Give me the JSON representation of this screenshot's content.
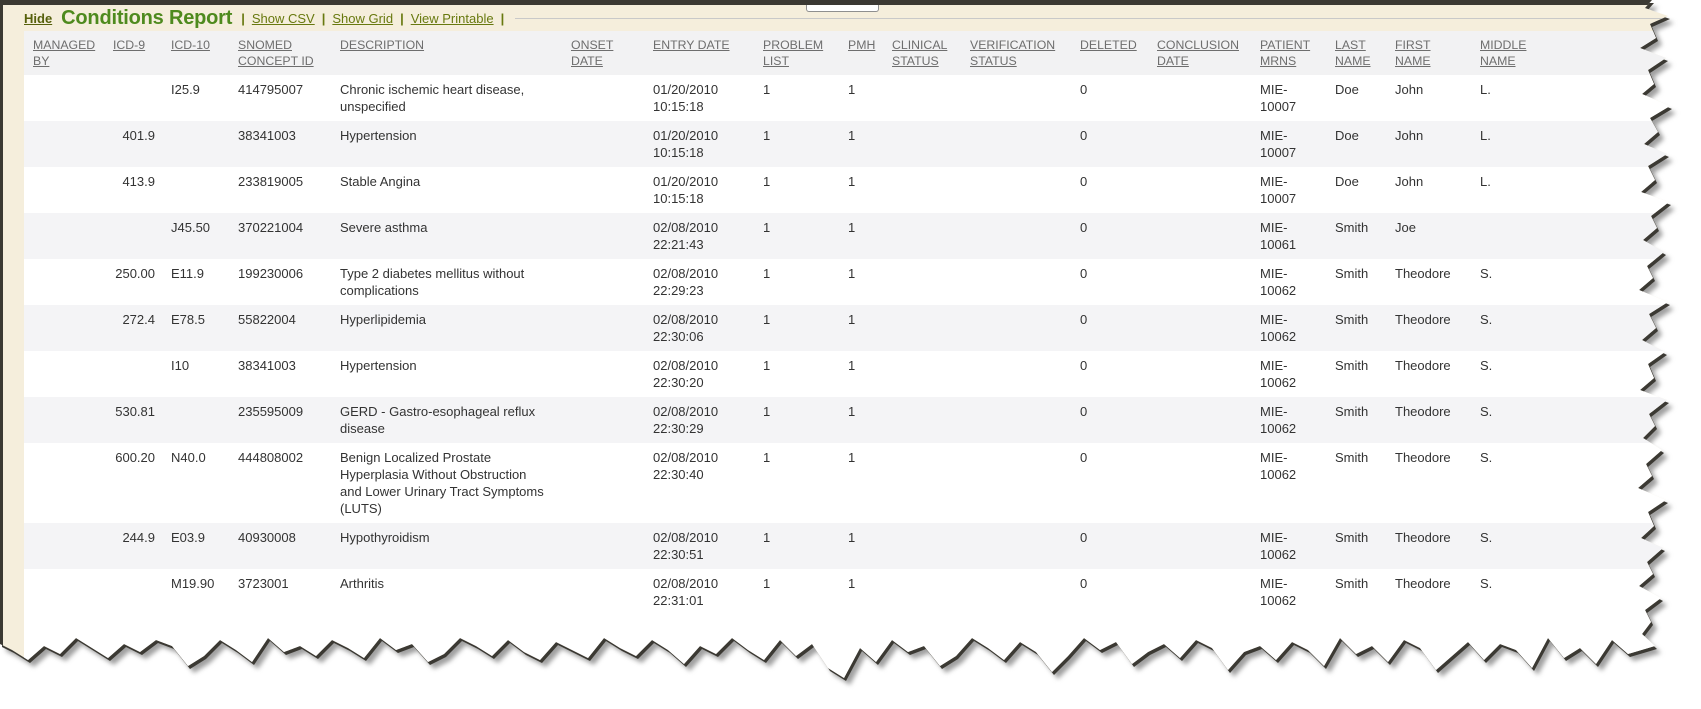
{
  "title_bar": {
    "hide_link": "Hide",
    "title": "Conditions Report",
    "separator": "|",
    "links": [
      "Show CSV",
      "Show Grid",
      "View Printable"
    ]
  },
  "table": {
    "columns": [
      {
        "key": "managed_by",
        "label": "MANAGED BY"
      },
      {
        "key": "icd9",
        "label": "ICD-9"
      },
      {
        "key": "icd10",
        "label": "ICD-10"
      },
      {
        "key": "snomed",
        "label": "SNOMED CONCEPT ID"
      },
      {
        "key": "description",
        "label": "DESCRIPTION"
      },
      {
        "key": "onset_date",
        "label": "ONSET DATE"
      },
      {
        "key": "entry_date",
        "label": "ENTRY DATE"
      },
      {
        "key": "problem_list",
        "label": "PROBLEM LIST"
      },
      {
        "key": "pmh",
        "label": "PMH"
      },
      {
        "key": "clinical_status",
        "label": "CLINICAL STATUS"
      },
      {
        "key": "verification_status",
        "label": "VERIFICATION STATUS"
      },
      {
        "key": "deleted",
        "label": "DELETED"
      },
      {
        "key": "conclusion_date",
        "label": "CONCLUSION DATE"
      },
      {
        "key": "patient_mrns",
        "label": "PATIENT MRNS"
      },
      {
        "key": "last_name",
        "label": "LAST NAME"
      },
      {
        "key": "first_name",
        "label": "FIRST NAME"
      },
      {
        "key": "middle_name",
        "label": "MIDDLE NAME"
      }
    ],
    "rows": [
      {
        "managed_by": "",
        "icd9": "",
        "icd10": "I25.9",
        "snomed": "414795007",
        "description": "Chronic ischemic heart disease, unspecified",
        "onset_date": "",
        "entry_date": "01/20/2010 10:15:18",
        "problem_list": "1",
        "pmh": "1",
        "clinical_status": "",
        "verification_status": "",
        "deleted": "0",
        "conclusion_date": "",
        "patient_mrns": "MIE-10007",
        "last_name": "Doe",
        "first_name": "John",
        "middle_name": "L."
      },
      {
        "managed_by": "",
        "icd9": "401.9",
        "icd10": "",
        "snomed": "38341003",
        "description": "Hypertension",
        "onset_date": "",
        "entry_date": "01/20/2010 10:15:18",
        "problem_list": "1",
        "pmh": "1",
        "clinical_status": "",
        "verification_status": "",
        "deleted": "0",
        "conclusion_date": "",
        "patient_mrns": "MIE-10007",
        "last_name": "Doe",
        "first_name": "John",
        "middle_name": "L."
      },
      {
        "managed_by": "",
        "icd9": "413.9",
        "icd10": "",
        "snomed": "233819005",
        "description": "Stable Angina",
        "onset_date": "",
        "entry_date": "01/20/2010 10:15:18",
        "problem_list": "1",
        "pmh": "1",
        "clinical_status": "",
        "verification_status": "",
        "deleted": "0",
        "conclusion_date": "",
        "patient_mrns": "MIE-10007",
        "last_name": "Doe",
        "first_name": "John",
        "middle_name": "L."
      },
      {
        "managed_by": "",
        "icd9": "",
        "icd10": "J45.50",
        "snomed": "370221004",
        "description": "Severe asthma",
        "onset_date": "",
        "entry_date": "02/08/2010 22:21:43",
        "problem_list": "1",
        "pmh": "1",
        "clinical_status": "",
        "verification_status": "",
        "deleted": "0",
        "conclusion_date": "",
        "patient_mrns": "MIE-10061",
        "last_name": "Smith",
        "first_name": "Joe",
        "middle_name": ""
      },
      {
        "managed_by": "",
        "icd9": "250.00",
        "icd10": "E11.9",
        "snomed": "199230006",
        "description": "Type 2 diabetes mellitus without complications",
        "onset_date": "",
        "entry_date": "02/08/2010 22:29:23",
        "problem_list": "1",
        "pmh": "1",
        "clinical_status": "",
        "verification_status": "",
        "deleted": "0",
        "conclusion_date": "",
        "patient_mrns": "MIE-10062",
        "last_name": "Smith",
        "first_name": "Theodore",
        "middle_name": "S."
      },
      {
        "managed_by": "",
        "icd9": "272.4",
        "icd10": "E78.5",
        "snomed": "55822004",
        "description": "Hyperlipidemia",
        "onset_date": "",
        "entry_date": "02/08/2010 22:30:06",
        "problem_list": "1",
        "pmh": "1",
        "clinical_status": "",
        "verification_status": "",
        "deleted": "0",
        "conclusion_date": "",
        "patient_mrns": "MIE-10062",
        "last_name": "Smith",
        "first_name": "Theodore",
        "middle_name": "S."
      },
      {
        "managed_by": "",
        "icd9": "",
        "icd10": "I10",
        "snomed": "38341003",
        "description": "Hypertension",
        "onset_date": "",
        "entry_date": "02/08/2010 22:30:20",
        "problem_list": "1",
        "pmh": "1",
        "clinical_status": "",
        "verification_status": "",
        "deleted": "0",
        "conclusion_date": "",
        "patient_mrns": "MIE-10062",
        "last_name": "Smith",
        "first_name": "Theodore",
        "middle_name": "S."
      },
      {
        "managed_by": "",
        "icd9": "530.81",
        "icd10": "",
        "snomed": "235595009",
        "description": "GERD - Gastro-esophageal reflux disease",
        "onset_date": "",
        "entry_date": "02/08/2010 22:30:29",
        "problem_list": "1",
        "pmh": "1",
        "clinical_status": "",
        "verification_status": "",
        "deleted": "0",
        "conclusion_date": "",
        "patient_mrns": "MIE-10062",
        "last_name": "Smith",
        "first_name": "Theodore",
        "middle_name": "S."
      },
      {
        "managed_by": "",
        "icd9": "600.20",
        "icd10": "N40.0",
        "snomed": "444808002",
        "description": "Benign Localized Prostate Hyperplasia Without Obstruction and Lower Urinary Tract Symptoms (LUTS)",
        "onset_date": "",
        "entry_date": "02/08/2010 22:30:40",
        "problem_list": "1",
        "pmh": "1",
        "clinical_status": "",
        "verification_status": "",
        "deleted": "0",
        "conclusion_date": "",
        "patient_mrns": "MIE-10062",
        "last_name": "Smith",
        "first_name": "Theodore",
        "middle_name": "S."
      },
      {
        "managed_by": "",
        "icd9": "244.9",
        "icd10": "E03.9",
        "snomed": "40930008",
        "description": "Hypothyroidism",
        "onset_date": "",
        "entry_date": "02/08/2010 22:30:51",
        "problem_list": "1",
        "pmh": "1",
        "clinical_status": "",
        "verification_status": "",
        "deleted": "0",
        "conclusion_date": "",
        "patient_mrns": "MIE-10062",
        "last_name": "Smith",
        "first_name": "Theodore",
        "middle_name": "S."
      },
      {
        "managed_by": "",
        "icd9": "",
        "icd10": "M19.90",
        "snomed": "3723001",
        "description": "Arthritis",
        "onset_date": "",
        "entry_date": "02/08/2010 22:31:01",
        "problem_list": "1",
        "pmh": "1",
        "clinical_status": "",
        "verification_status": "",
        "deleted": "0",
        "conclusion_date": "",
        "patient_mrns": "MIE-10062",
        "last_name": "Smith",
        "first_name": "Theodore",
        "middle_name": "S."
      }
    ]
  },
  "colors": {
    "page_background": "#F5EEDC",
    "frame_border": "#3B3933",
    "title_green": "#4E8A1E",
    "link_olive": "#68790F",
    "hide_olive": "#56600C",
    "header_text": "#6E6E6E",
    "header_row": "#F2F2F3",
    "row_alt": "#F4F4F6",
    "row_white": "#FFFFFF",
    "body_text": "#333333",
    "rule_line": "#C9C9C9",
    "tear_shadow": "#8F8F8F"
  }
}
